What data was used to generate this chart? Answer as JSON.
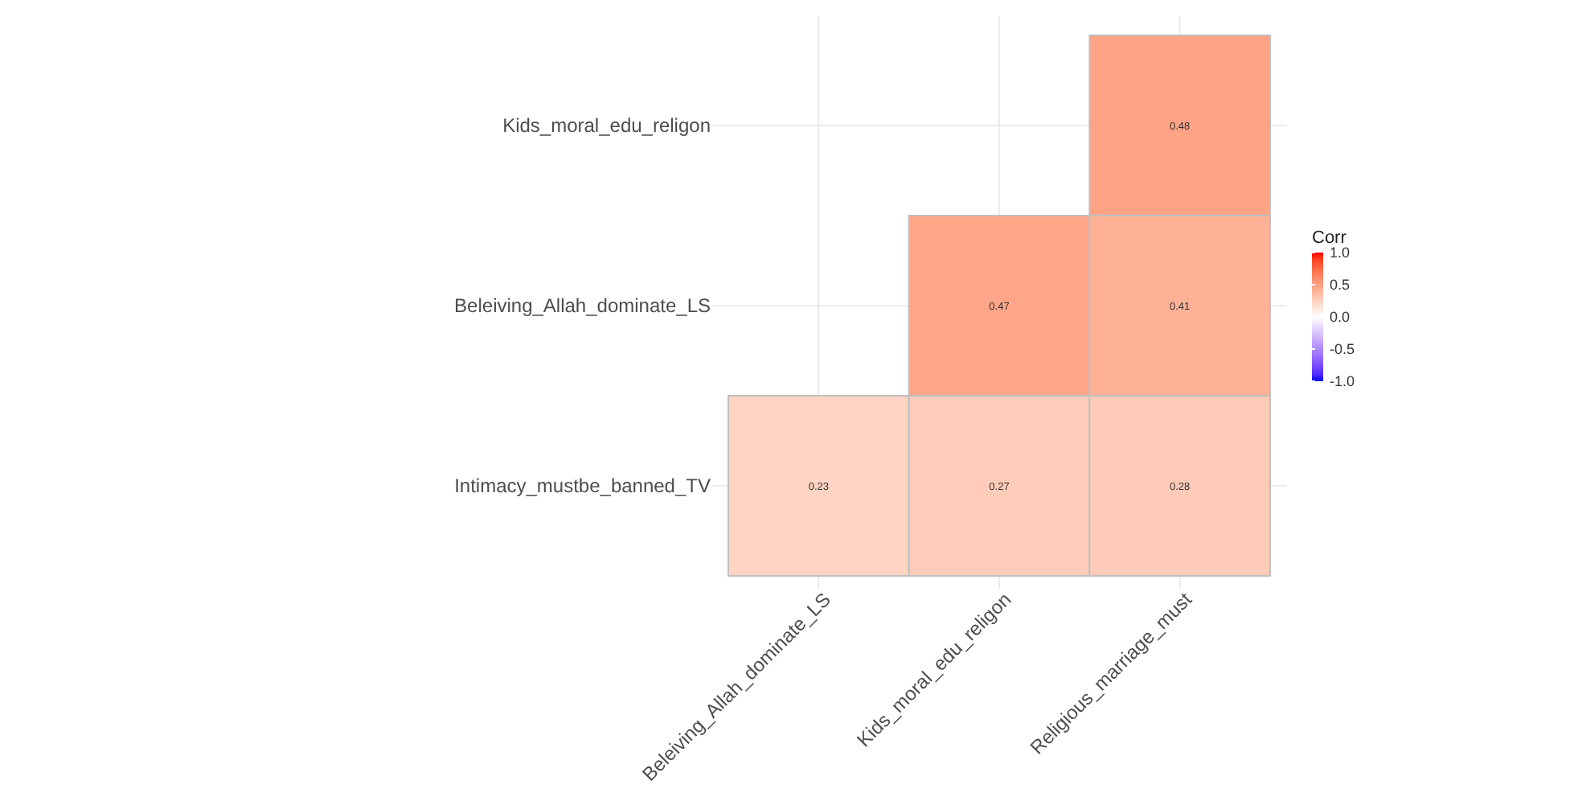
{
  "chart_data": {
    "type": "heatmap",
    "legend_title": "Corr",
    "categories": [
      "Beleiving_Allah_dominate_LS",
      "Kids_moral_edu_religon",
      "Religious_marriage_must"
    ],
    "y_categories": [
      "Kids_moral_edu_religon",
      "Beleiving_Allah_dominate_LS",
      "Intimacy_mustbe_banned_TV"
    ],
    "cells": [
      [
        null,
        null,
        0.48
      ],
      [
        null,
        0.47,
        0.41
      ],
      [
        0.23,
        0.27,
        0.28
      ]
    ],
    "data_labels": true,
    "grid": true,
    "clim": [
      -1,
      1
    ],
    "cticks": [
      {
        "value": 1,
        "label": "1.0"
      },
      {
        "value": 0.5,
        "label": "0.5"
      },
      {
        "value": 0,
        "label": "0.0"
      },
      {
        "value": -0.5,
        "label": "-0.5"
      },
      {
        "value": -1,
        "label": "-1.0"
      }
    ]
  }
}
